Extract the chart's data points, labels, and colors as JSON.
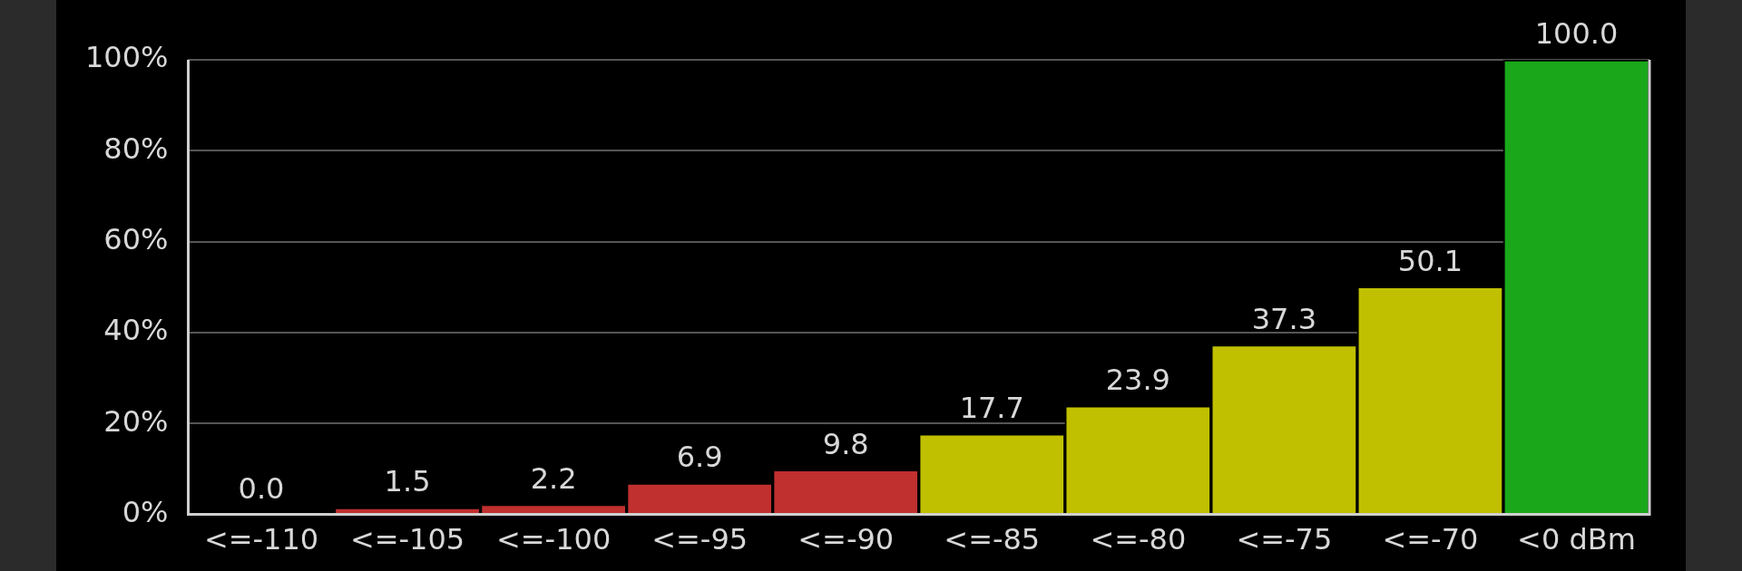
{
  "chart_data": {
    "type": "bar",
    "categories": [
      "<=-110",
      "<=-105",
      "<=-100",
      "<=-95",
      "<=-90",
      "<=-85",
      "<=-80",
      "<=-75",
      "<=-70",
      "<0 dBm"
    ],
    "values": [
      0.0,
      1.5,
      2.2,
      6.9,
      9.8,
      17.7,
      23.9,
      37.3,
      50.1,
      100.0
    ],
    "colors": [
      "#c0302f",
      "#c0302f",
      "#c0302f",
      "#c0302f",
      "#c0302f",
      "#c0c000",
      "#c0c000",
      "#c0c000",
      "#c0c000",
      "#1aa81a"
    ],
    "ylim": [
      0,
      100
    ],
    "yticks": [
      {
        "value": 0,
        "label": "0%"
      },
      {
        "value": 20,
        "label": "20%"
      },
      {
        "value": 40,
        "label": "40%"
      },
      {
        "value": 60,
        "label": "60%"
      },
      {
        "value": 80,
        "label": "80%"
      },
      {
        "value": 100,
        "label": "100%"
      }
    ],
    "value_labels": [
      "0.0",
      "1.5",
      "2.2",
      "6.9",
      "9.8",
      "17.7",
      "23.9",
      "37.3",
      "50.1",
      "100.0"
    ],
    "grid": "y",
    "legend": false
  }
}
